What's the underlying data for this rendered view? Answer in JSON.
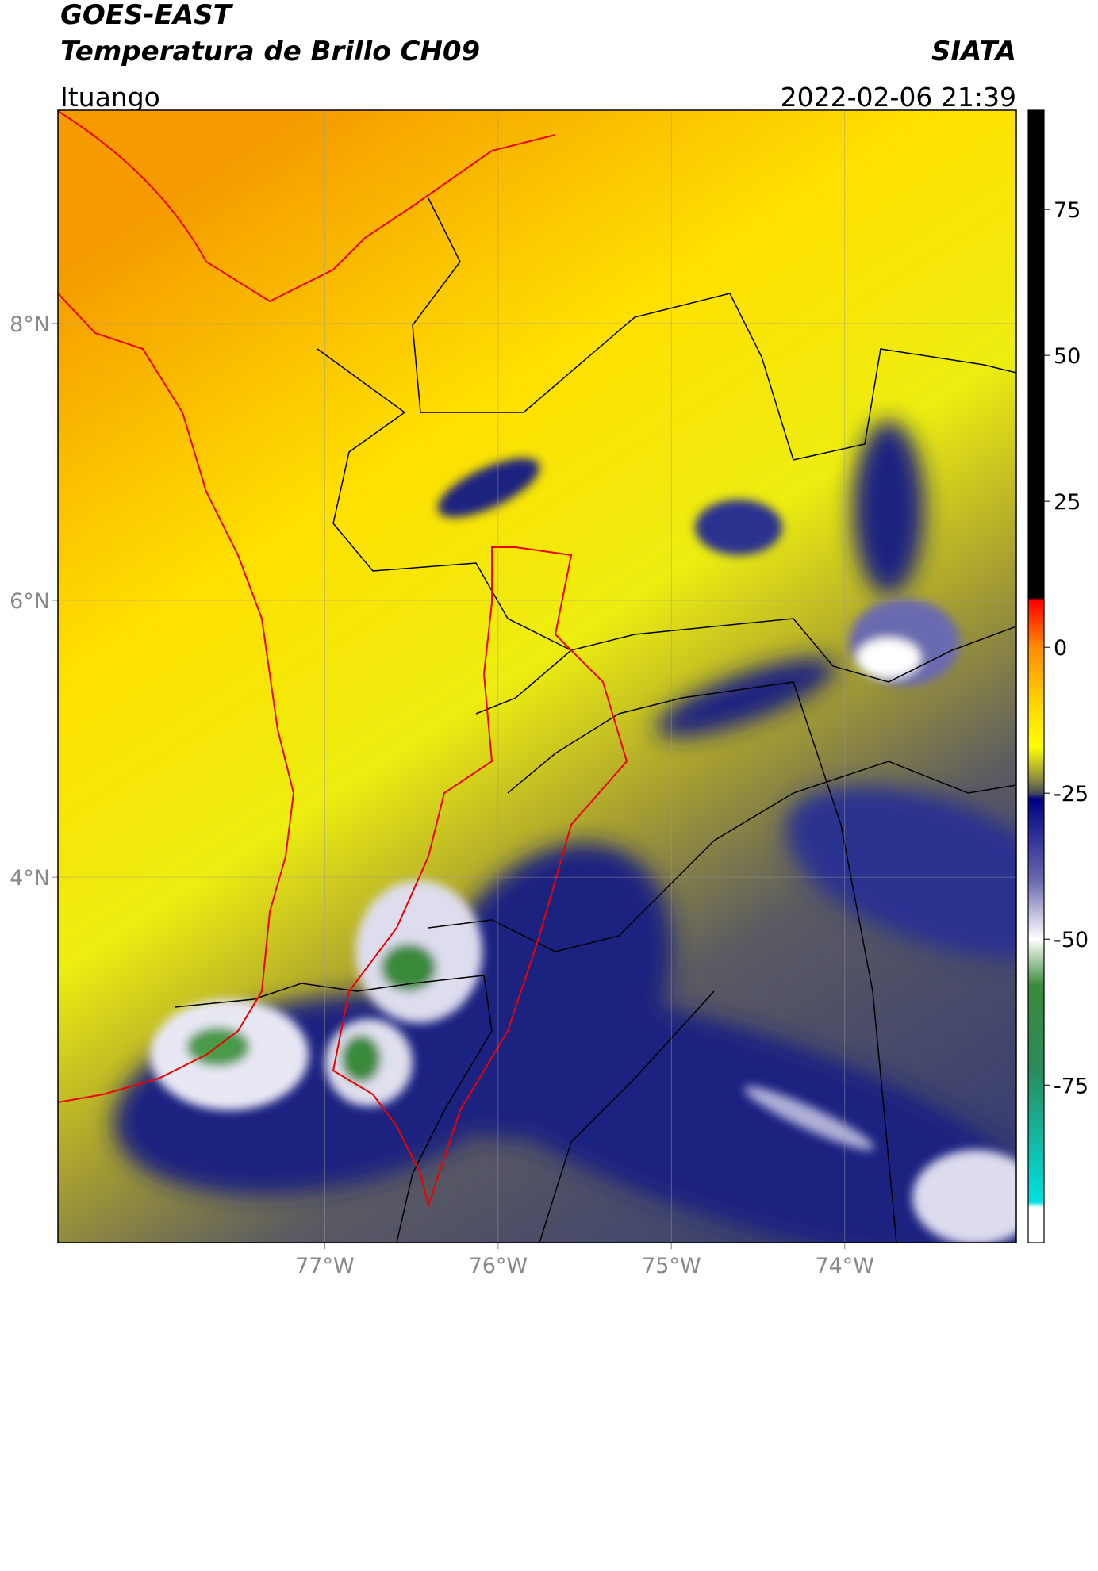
{
  "header": {
    "title": "GOES-EAST",
    "subtitle": "Temperatura de Brillo CH09",
    "source": "SIATA",
    "region": "Ituango",
    "datetime": "2022-02-06 21:39"
  },
  "map": {
    "lonlim": [
      -78.54,
      -73.01
    ],
    "latlim": [
      1.36,
      9.54
    ],
    "lonticks": [
      {
        "value": -77,
        "label": "77°W"
      },
      {
        "value": -76,
        "label": "76°W"
      },
      {
        "value": -75,
        "label": "75°W"
      },
      {
        "value": -74,
        "label": "74°W"
      }
    ],
    "latticks": [
      {
        "value": 8,
        "label": "8°N"
      },
      {
        "value": 6,
        "label": "6°N"
      },
      {
        "value": 4,
        "label": "4°N"
      }
    ],
    "grid": true
  },
  "colorbar": {
    "lim": [
      -102,
      92
    ],
    "ticks": [
      75,
      50,
      25,
      0,
      -25,
      -50,
      -75
    ],
    "colors": [
      {
        "value": 92,
        "color": "#000000"
      },
      {
        "value": 8.5,
        "color": "#000000"
      },
      {
        "value": 8,
        "color": "#ff0000"
      },
      {
        "value": 0,
        "color": "#ff8c00"
      },
      {
        "value": -10,
        "color": "#ffd700"
      },
      {
        "value": -17,
        "color": "#ffff00"
      },
      {
        "value": -22,
        "color": "#9a9a3a"
      },
      {
        "value": -25,
        "color": "#4a4a5a"
      },
      {
        "value": -26,
        "color": "#000080"
      },
      {
        "value": -40,
        "color": "#6a6ab0"
      },
      {
        "value": -50,
        "color": "#ffffff"
      },
      {
        "value": -58,
        "color": "#3a8a3a"
      },
      {
        "value": -72,
        "color": "#2a8a5a"
      },
      {
        "value": -95,
        "color": "#00e0e0"
      },
      {
        "value": -96,
        "color": "#ffffff"
      },
      {
        "value": -102,
        "color": "#ffffff"
      }
    ]
  }
}
